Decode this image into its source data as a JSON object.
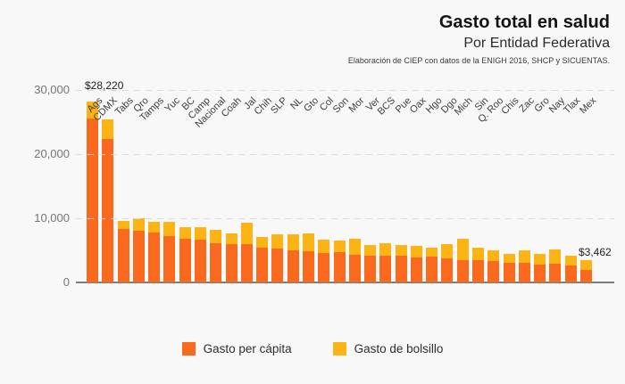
{
  "header": {
    "title": "Gasto total en salud",
    "subtitle": "Por Entidad Federativa",
    "note": "Elaboración de CIEP con datos de la ENIGH 2016, SHCP y SICUENTAS."
  },
  "annotations": {
    "first_bar": "$28,220",
    "last_bar": "$3,462"
  },
  "legend": [
    {
      "label": "Gasto per cápita",
      "color": "#F96A1E"
    },
    {
      "label": "Gasto de bolsillo",
      "color": "#FBB414"
    }
  ],
  "colors": {
    "background": "#F8F8F8",
    "orange": "#F96A1E",
    "yellow": "#FBB414",
    "gridline": "#DBDBDB",
    "axis_line": "#7C7C7C",
    "y_tick_text": "#757575",
    "x_tick_text": "#3E3E3E"
  },
  "chart_data": {
    "type": "bar",
    "stacked": true,
    "title": "Gasto total en salud",
    "subtitle": "Por Entidad Federativa",
    "xlabel": "",
    "ylabel": "",
    "ylim": [
      0,
      30000
    ],
    "grid": "horizontal-dashed",
    "legend_position": "bottom",
    "yticks": [
      {
        "label": "30,000",
        "value": 30000
      },
      {
        "label": "20,000",
        "value": 20000
      },
      {
        "label": "10,000",
        "value": 10000
      },
      {
        "label": "0",
        "value": 0
      }
    ],
    "categories": [
      "Ags",
      "CDMX",
      "Tabs",
      "Qro",
      "Tamps",
      "Yuc",
      "BC",
      "Camp",
      "Nacional",
      "Coah",
      "Jal",
      "Chih",
      "SLP",
      "NL",
      "Gto",
      "Col",
      "Son",
      "Mor",
      "Ver",
      "BCS",
      "Pue",
      "Oax",
      "Hgo",
      "Dgo",
      "Mich",
      "Sin",
      "Q. Roo",
      "Chis",
      "Zac",
      "Gro",
      "Nay",
      "Tlax",
      "Mex"
    ],
    "series": [
      {
        "name": "Gasto per cápita",
        "color": "#F96A1E",
        "values": [
          25600,
          22300,
          8350,
          8030,
          7760,
          7290,
          6740,
          6600,
          6150,
          5970,
          5930,
          5460,
          5230,
          5000,
          4900,
          4600,
          4700,
          4310,
          4210,
          4210,
          4170,
          3930,
          3990,
          3750,
          3510,
          3510,
          3380,
          3100,
          3100,
          2820,
          2900,
          2700,
          1900
        ]
      },
      {
        "name": "Gasto de bolsillo",
        "color": "#FBB414",
        "values": [
          2620,
          3100,
          1250,
          1970,
          1680,
          2110,
          1850,
          1990,
          2000,
          1630,
          3370,
          1640,
          2230,
          2540,
          2700,
          2100,
          1900,
          2540,
          1580,
          1860,
          1620,
          1760,
          1470,
          2180,
          3250,
          1950,
          1620,
          1340,
          1900,
          1680,
          2250,
          1450,
          1562
        ]
      }
    ],
    "totals": [
      28220,
      25400,
      9600,
      10000,
      9440,
      9400,
      8590,
      8590,
      8150,
      7600,
      9300,
      7100,
      7460,
      7540,
      7600,
      6700,
      6600,
      6850,
      5790,
      6070,
      5790,
      5690,
      5460,
      5930,
      6760,
      5460,
      5000,
      4440,
      5000,
      4500,
      5150,
      4150,
      3462
    ],
    "value_labels": {
      "Ags": "$28,220",
      "Mex": "$3,462"
    }
  }
}
